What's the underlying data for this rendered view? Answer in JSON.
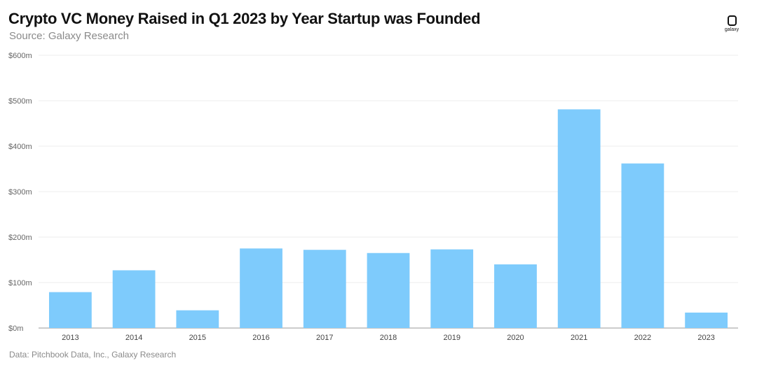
{
  "header": {
    "title": "Crypto VC Money Raised in Q1 2023 by Year Startup was Founded",
    "subtitle": "Source: Galaxy Research",
    "logo_text": "galaxy"
  },
  "footer": {
    "note": "Data: Pitchbook Data, Inc., Galaxy Research"
  },
  "colors": {
    "bar": "#7ecbfc",
    "grid": "#ececec",
    "axis": "#999999"
  },
  "chart_data": {
    "type": "bar",
    "title": "Crypto VC Money Raised in Q1 2023 by Year Startup was Founded",
    "xlabel": "",
    "ylabel": "",
    "categories": [
      "2013",
      "2014",
      "2015",
      "2016",
      "2017",
      "2018",
      "2019",
      "2020",
      "2021",
      "2022",
      "2023"
    ],
    "values": [
      79,
      127,
      39,
      175,
      172,
      165,
      173,
      140,
      481,
      362,
      34
    ],
    "ylim": [
      0,
      600
    ],
    "yticks": [
      0,
      100,
      200,
      300,
      400,
      500,
      600
    ],
    "ytick_labels": [
      "$0m",
      "$100m",
      "$200m",
      "$300m",
      "$400m",
      "$500m",
      "$600m"
    ],
    "grid": true,
    "units": "USD millions"
  }
}
